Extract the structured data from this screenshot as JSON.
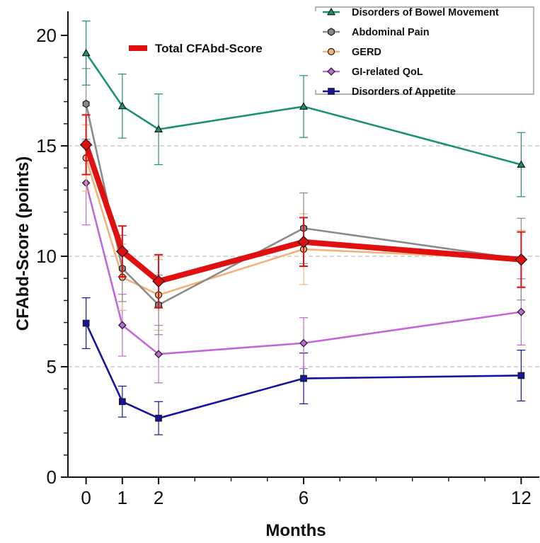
{
  "chart_data": {
    "type": "line",
    "xlabel": "Months",
    "ylabel": "CFAbd-Score (points)",
    "x": [
      0,
      1,
      2,
      6,
      12
    ],
    "xticks": [
      "0",
      "1",
      "2",
      "6",
      "12"
    ],
    "xlim": [
      -0.5,
      12.5
    ],
    "ylim": [
      0,
      20.5
    ],
    "yticks": [
      "0",
      "5",
      "10",
      "15",
      "20"
    ],
    "gridlines_y": [
      5,
      10,
      15
    ],
    "legend_position": "top-right",
    "series": [
      {
        "name": "Disorders of Bowel Movement",
        "color": "#1a9170",
        "marker": "triangle",
        "values": [
          19.2,
          16.8,
          15.75,
          16.78,
          14.15
        ],
        "error": [
          1.45,
          1.45,
          1.6,
          1.4,
          1.45
        ]
      },
      {
        "name": "Abdominal Pain",
        "color": "#8a8a8a",
        "marker": "hexagon",
        "values": [
          16.9,
          9.45,
          7.8,
          11.27,
          9.87
        ],
        "error": [
          1.6,
          1.5,
          1.35,
          1.6,
          1.85
        ]
      },
      {
        "name": "GERD",
        "color": "#f2b27a",
        "marker": "circle",
        "values": [
          14.45,
          9.05,
          8.25,
          10.32,
          9.87
        ],
        "error": [
          1.5,
          1.5,
          1.6,
          1.6,
          1.3
        ]
      },
      {
        "name": "GI-related QoL",
        "color": "#c168d8",
        "marker": "diamond",
        "values": [
          13.32,
          6.88,
          5.57,
          6.07,
          7.48
        ],
        "error": [
          1.9,
          1.4,
          1.3,
          1.15,
          1.5
        ]
      },
      {
        "name": "Disorders of Appetite",
        "color": "#1414a0",
        "marker": "square",
        "values": [
          6.97,
          3.42,
          2.67,
          4.47,
          4.6
        ],
        "error": [
          1.15,
          0.7,
          0.75,
          1.15,
          1.15
        ]
      },
      {
        "name": "Total CFAbd-Score",
        "color": "#e01010",
        "marker": "diamond",
        "bold": true,
        "values": [
          15.05,
          10.22,
          8.87,
          10.65,
          9.85
        ],
        "error": [
          1.35,
          1.15,
          1.2,
          1.1,
          1.25
        ]
      }
    ]
  }
}
